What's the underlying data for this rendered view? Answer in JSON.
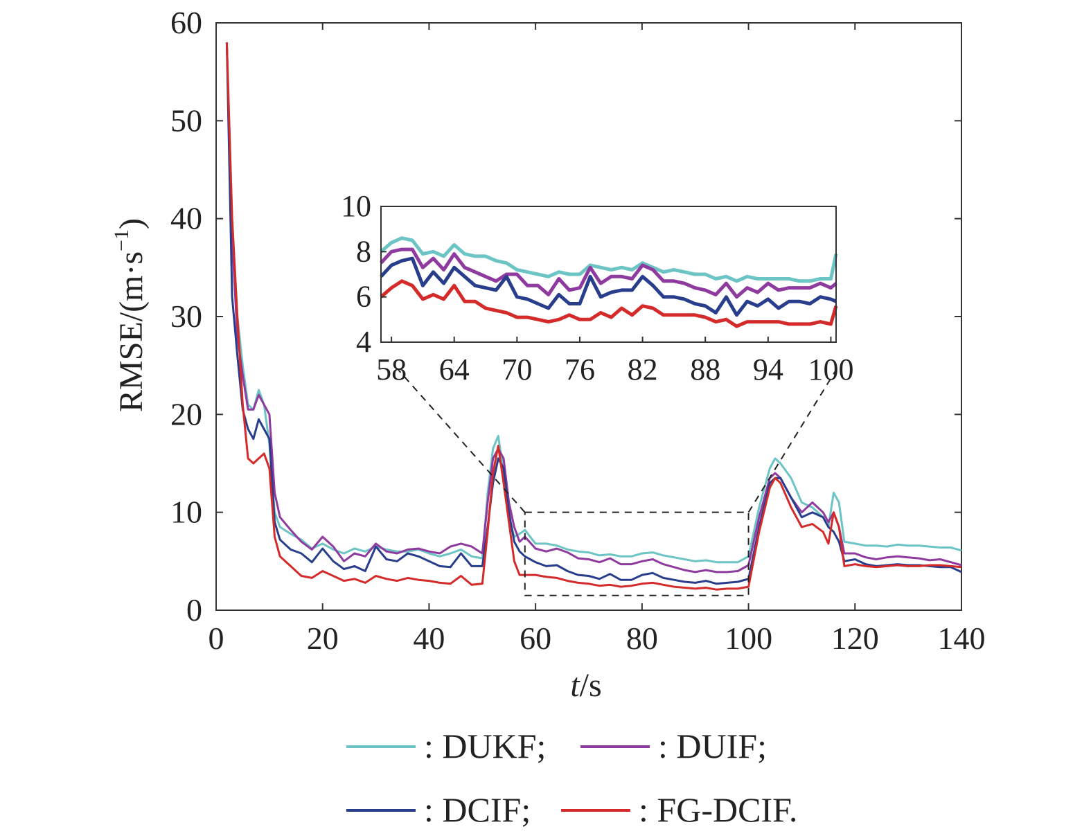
{
  "chart_data": {
    "type": "line",
    "xlabel_italic": "t",
    "xlabel_unit": "/s",
    "ylabel": "RMSE/(m·s",
    "ylabel_sup": "−1",
    "ylabel_close": ")",
    "xlim": [
      0,
      140
    ],
    "ylim": [
      0,
      60
    ],
    "xticks": [
      "0",
      "20",
      "40",
      "60",
      "80",
      "100",
      "120",
      "140"
    ],
    "yticks": [
      "0",
      "10",
      "20",
      "30",
      "40",
      "50",
      "60"
    ],
    "legend_placement": "bottom",
    "x": [
      2,
      3,
      4,
      5,
      6,
      7,
      8,
      9,
      10,
      11,
      12,
      14,
      16,
      18,
      20,
      22,
      24,
      26,
      28,
      30,
      32,
      34,
      36,
      38,
      40,
      42,
      44,
      46,
      48,
      50,
      51,
      52,
      53,
      54,
      55,
      56,
      57,
      58,
      60,
      62,
      64,
      66,
      68,
      70,
      72,
      74,
      76,
      78,
      80,
      82,
      84,
      86,
      88,
      90,
      92,
      94,
      96,
      98,
      100,
      102,
      104,
      105,
      106,
      108,
      110,
      112,
      114,
      115,
      116,
      117,
      118,
      120,
      122,
      124,
      126,
      128,
      130,
      132,
      134,
      136,
      138,
      140
    ],
    "series": [
      {
        "name": "DUKF",
        "color": "#6cc4c4",
        "values": [
          58,
          40,
          30,
          25,
          21,
          20.5,
          22.5,
          21,
          17,
          10,
          8.5,
          7.8,
          7.2,
          6.3,
          6.8,
          6.2,
          5.8,
          6.3,
          6.0,
          6.5,
          6.2,
          6.0,
          6.0,
          6.2,
          5.8,
          5.5,
          5.8,
          6.2,
          5.5,
          5.3,
          12,
          16.5,
          17.8,
          14,
          9.5,
          7.5,
          7.8,
          8.2,
          6.8,
          6.8,
          6.6,
          6.2,
          6.0,
          5.9,
          5.6,
          5.7,
          5.5,
          5.5,
          5.8,
          5.9,
          5.6,
          5.4,
          5.2,
          5.0,
          5.1,
          4.9,
          4.9,
          4.9,
          5.5,
          10.5,
          14.5,
          15.5,
          15,
          13.5,
          11,
          10.5,
          9.5,
          8.5,
          12,
          11,
          7,
          6.8,
          6.6,
          6.6,
          6.5,
          6.7,
          6.6,
          6.6,
          6.5,
          6.4,
          6.4,
          6.1
        ]
      },
      {
        "name": "DUIF",
        "color": "#8e3a9e",
        "values": [
          58,
          38,
          28,
          24,
          20.5,
          20.5,
          22,
          21,
          20,
          12,
          9.5,
          8.2,
          7.0,
          6.2,
          7.5,
          6.5,
          5.0,
          5.8,
          5.5,
          6.8,
          6.0,
          5.8,
          6.2,
          6.3,
          6.0,
          5.8,
          6.5,
          6.8,
          6.5,
          5.8,
          11,
          15.5,
          16.5,
          15.5,
          11,
          8.5,
          7.0,
          7.5,
          6.3,
          6.0,
          6.3,
          5.9,
          5.3,
          5.2,
          4.9,
          5.3,
          4.7,
          4.7,
          5.0,
          5.2,
          4.7,
          4.4,
          4.1,
          3.9,
          4.1,
          3.9,
          3.9,
          4.0,
          4.6,
          9.5,
          13.5,
          14,
          13.5,
          11.5,
          10,
          11,
          10,
          9,
          10,
          8.5,
          5.8,
          5.8,
          5.4,
          5.2,
          5.4,
          5.5,
          5.4,
          5.3,
          5.1,
          5.2,
          4.9,
          4.6
        ]
      },
      {
        "name": "DCIF",
        "color": "#283e8c",
        "values": [
          58,
          32,
          26,
          20.5,
          18.5,
          17.5,
          19.5,
          18.5,
          17.5,
          9,
          7.2,
          6.2,
          5.8,
          4.9,
          6.3,
          5.0,
          4.2,
          4.5,
          4.0,
          6.5,
          5.2,
          5.0,
          5.8,
          5.5,
          5.0,
          4.5,
          4.4,
          5.8,
          4.5,
          4.5,
          8.5,
          13,
          15.5,
          14.5,
          10,
          7.0,
          6.0,
          5.5,
          4.9,
          4.5,
          4.6,
          4.0,
          3.6,
          3.5,
          3.2,
          3.7,
          3.1,
          3.1,
          3.6,
          3.8,
          3.3,
          3.1,
          2.9,
          2.8,
          3.0,
          2.7,
          2.8,
          2.9,
          3.2,
          8.5,
          13,
          13.5,
          13.5,
          11.5,
          9.5,
          10,
          9.5,
          8.5,
          8,
          7,
          5.0,
          5.2,
          4.7,
          4.5,
          4.6,
          4.7,
          4.6,
          4.6,
          4.5,
          4.4,
          4.4,
          3.9
        ]
      },
      {
        "name": "FG-DCIF",
        "color": "#d42a2a",
        "values": [
          58,
          40,
          30,
          21,
          15.5,
          15,
          15.5,
          16,
          14.5,
          7.5,
          5.5,
          4.5,
          3.5,
          3.3,
          4.0,
          3.5,
          3.0,
          3.2,
          2.8,
          3.5,
          3.2,
          3.0,
          3.3,
          3.1,
          3.0,
          2.8,
          2.7,
          3.5,
          2.6,
          2.7,
          8,
          14,
          16.8,
          13,
          9,
          5.0,
          3.6,
          3.6,
          3.6,
          3.4,
          3.3,
          3.0,
          2.8,
          2.7,
          2.5,
          2.6,
          2.4,
          2.5,
          2.7,
          2.8,
          2.6,
          2.4,
          2.3,
          2.2,
          2.3,
          2.1,
          2.2,
          2.2,
          2.4,
          8,
          12.5,
          13.5,
          13,
          10.5,
          8.5,
          8.8,
          8.0,
          6.8,
          10,
          8.5,
          4.5,
          4.7,
          4.5,
          4.4,
          4.5,
          4.6,
          4.5,
          4.5,
          4.6,
          4.6,
          4.5,
          4.4
        ]
      }
    ],
    "zoom_box": {
      "x_range": [
        58,
        100
      ],
      "y_range": [
        1.5,
        10
      ]
    },
    "inset": {
      "xlim": [
        57,
        100.5
      ],
      "ylim": [
        4,
        10
      ],
      "xticks": [
        "58",
        "64",
        "70",
        "76",
        "82",
        "88",
        "94",
        "100"
      ],
      "yticks": [
        "4",
        "6",
        "8",
        "10"
      ],
      "x": [
        57,
        58,
        59,
        60,
        61,
        62,
        63,
        64,
        65,
        66,
        67,
        68,
        69,
        70,
        71,
        72,
        73,
        74,
        75,
        76,
        77,
        78,
        79,
        80,
        81,
        82,
        83,
        84,
        85,
        86,
        87,
        88,
        89,
        90,
        91,
        92,
        93,
        94,
        95,
        96,
        97,
        98,
        99,
        100,
        100.5
      ],
      "series": [
        {
          "name": "DUKF",
          "values": [
            8.0,
            8.4,
            8.6,
            8.5,
            7.9,
            8.0,
            7.8,
            8.3,
            7.9,
            7.8,
            7.8,
            7.6,
            7.5,
            7.2,
            7.1,
            7.0,
            6.9,
            7.1,
            7.0,
            7.0,
            7.4,
            7.3,
            7.2,
            7.3,
            7.2,
            7.5,
            7.3,
            7.1,
            7.2,
            7.1,
            7.0,
            7.0,
            6.8,
            6.9,
            6.7,
            6.9,
            6.8,
            6.8,
            6.8,
            6.8,
            6.7,
            6.7,
            6.8,
            6.8,
            7.9
          ]
        },
        {
          "name": "DUIF",
          "values": [
            7.5,
            8.0,
            8.1,
            8.1,
            7.3,
            7.7,
            7.2,
            7.9,
            7.3,
            7.1,
            6.9,
            6.7,
            7.0,
            7.0,
            6.5,
            6.5,
            6.1,
            6.8,
            6.3,
            6.4,
            7.3,
            6.6,
            6.9,
            6.9,
            6.8,
            7.4,
            7.2,
            6.7,
            6.7,
            6.6,
            6.4,
            6.3,
            6.1,
            6.6,
            6.0,
            6.4,
            6.2,
            6.6,
            6.3,
            6.4,
            6.4,
            6.4,
            6.6,
            6.4,
            6.6
          ]
        },
        {
          "name": "DCIF",
          "values": [
            6.9,
            7.4,
            7.6,
            7.7,
            6.5,
            7.1,
            6.6,
            7.3,
            6.9,
            6.5,
            6.4,
            6.3,
            6.9,
            6.0,
            5.9,
            5.7,
            5.5,
            6.1,
            5.7,
            5.7,
            6.9,
            6.0,
            6.2,
            6.3,
            6.3,
            6.9,
            6.5,
            6.0,
            6.0,
            5.9,
            5.7,
            5.6,
            5.3,
            6.0,
            5.2,
            5.8,
            5.6,
            5.9,
            5.5,
            5.8,
            5.8,
            5.7,
            6.0,
            5.9,
            5.8
          ]
        },
        {
          "name": "FG-DCIF",
          "values": [
            6.0,
            6.4,
            6.7,
            6.5,
            5.9,
            6.1,
            5.9,
            6.5,
            5.8,
            5.8,
            5.5,
            5.4,
            5.3,
            5.1,
            5.1,
            5.0,
            4.9,
            5.0,
            5.2,
            5.0,
            5.0,
            5.3,
            5.1,
            5.5,
            5.2,
            5.6,
            5.5,
            5.2,
            5.2,
            5.2,
            5.2,
            5.1,
            4.9,
            5.0,
            4.7,
            4.9,
            4.9,
            4.9,
            4.9,
            4.8,
            4.8,
            4.8,
            4.9,
            4.8,
            5.6
          ]
        }
      ]
    }
  }
}
